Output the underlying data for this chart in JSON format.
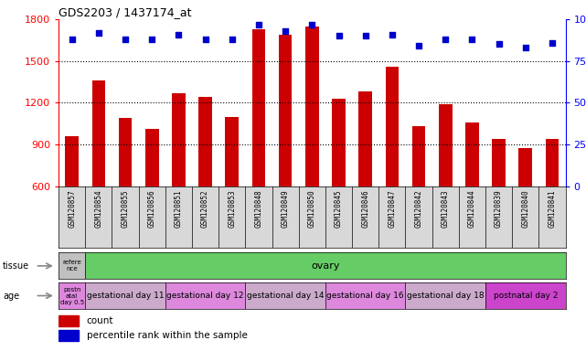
{
  "title": "GDS2203 / 1437174_at",
  "samples": [
    "GSM120857",
    "GSM120854",
    "GSM120855",
    "GSM120856",
    "GSM120851",
    "GSM120852",
    "GSM120853",
    "GSM120848",
    "GSM120849",
    "GSM120850",
    "GSM120845",
    "GSM120846",
    "GSM120847",
    "GSM120842",
    "GSM120843",
    "GSM120844",
    "GSM120839",
    "GSM120840",
    "GSM120841"
  ],
  "counts": [
    960,
    1360,
    1090,
    1010,
    1270,
    1240,
    1100,
    1730,
    1690,
    1750,
    1230,
    1280,
    1460,
    1030,
    1190,
    1060,
    940,
    870,
    940
  ],
  "percentiles": [
    88,
    92,
    88,
    88,
    91,
    88,
    88,
    97,
    93,
    97,
    90,
    90,
    91,
    84,
    88,
    88,
    85,
    83,
    86
  ],
  "ylim_left": [
    600,
    1800
  ],
  "ylim_right": [
    0,
    100
  ],
  "yticks_left": [
    600,
    900,
    1200,
    1500,
    1800
  ],
  "yticks_right": [
    0,
    25,
    50,
    75,
    100
  ],
  "bar_color": "#cc0000",
  "dot_color": "#0000cc",
  "background_color": "#ffffff",
  "plot_bg": "#ffffff",
  "tissue_row": {
    "label": "tissue",
    "ref_label": "refere\nnce",
    "ref_color": "#c0c0c0",
    "ovary_label": "ovary",
    "ovary_color": "#66cc66"
  },
  "age_row": {
    "label": "age",
    "groups": [
      {
        "label": "postn\natal\nday 0.5",
        "color": "#dd88dd",
        "count": 1
      },
      {
        "label": "gestational day 11",
        "color": "#ccaacc",
        "count": 3
      },
      {
        "label": "gestational day 12",
        "color": "#dd88dd",
        "count": 3
      },
      {
        "label": "gestational day 14",
        "color": "#ccaacc",
        "count": 3
      },
      {
        "label": "gestational day 16",
        "color": "#dd88dd",
        "count": 3
      },
      {
        "label": "gestational day 18",
        "color": "#ccaacc",
        "count": 3
      },
      {
        "label": "postnatal day 2",
        "color": "#cc44cc",
        "count": 3
      }
    ]
  },
  "legend": [
    {
      "label": "count",
      "color": "#cc0000"
    },
    {
      "label": "percentile rank within the sample",
      "color": "#0000cc"
    }
  ]
}
